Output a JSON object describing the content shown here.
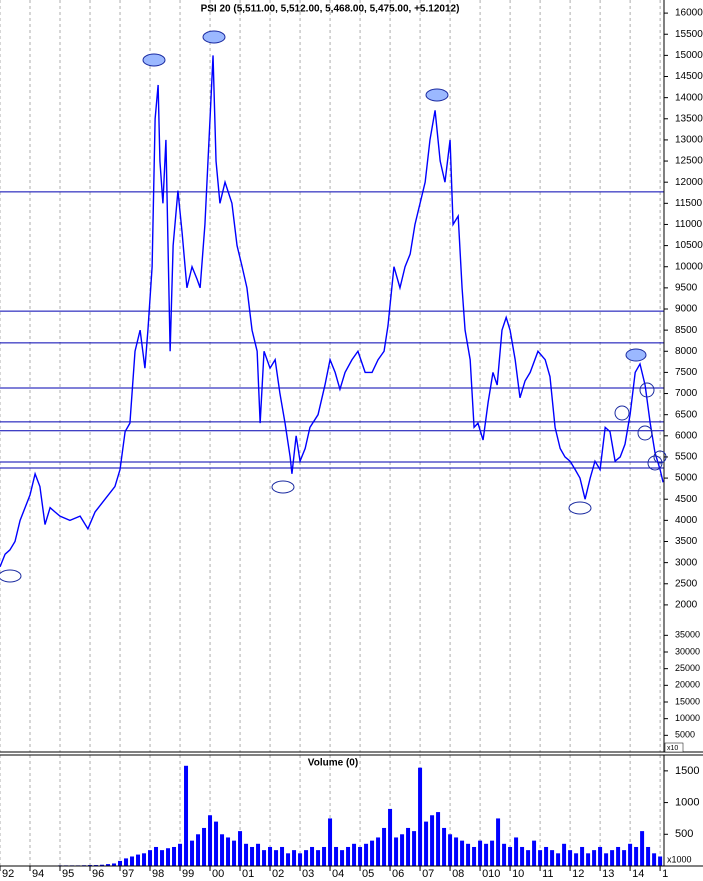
{
  "chart_data": [
    {
      "type": "line",
      "title": "PSI 20 (5,511.00, 5,512.00, 5,468.00, 5,475.00, +5.12012)",
      "color": "#0000ff",
      "x": [
        0,
        0.17,
        0.33,
        0.5,
        0.67,
        1,
        1.17,
        1.33,
        1.5,
        1.67,
        1.83,
        2,
        2.33,
        2.67,
        2.93,
        3.17,
        3.5,
        3.83,
        4,
        4.17,
        4.33,
        4.5,
        4.67,
        4.83,
        4.93,
        5.07,
        5.17,
        5.27,
        5.33,
        5.43,
        5.53,
        5.67,
        5.77,
        5.93,
        6.07,
        6.23,
        6.4,
        6.57,
        6.67,
        6.83,
        7,
        7.1,
        7.2,
        7.33,
        7.5,
        7.73,
        7.9,
        8.07,
        8.23,
        8.4,
        8.57,
        8.67,
        8.8,
        9,
        9.17,
        9.33,
        9.5,
        9.67,
        9.73,
        9.87,
        10,
        10.17,
        10.33,
        10.6,
        10.83,
        11,
        11.17,
        11.33,
        11.5,
        11.73,
        11.93,
        12.17,
        12.4,
        12.6,
        12.8,
        12.93,
        13.13,
        13.33,
        13.5,
        13.67,
        13.83,
        14,
        14.17,
        14.33,
        14.5,
        14.67,
        14.83,
        15,
        15.1,
        15.27,
        15.4,
        15.5,
        15.67,
        15.8,
        15.93,
        16.1,
        16.27,
        16.43,
        16.57,
        16.73,
        16.87,
        17,
        17.17,
        17.33,
        17.5,
        17.67,
        17.93,
        18.17,
        18.33,
        18.5,
        18.67,
        18.83,
        19,
        19.17,
        19.33,
        19.5,
        19.67,
        19.83,
        20,
        20.17,
        20.33,
        20.5,
        20.67,
        20.83,
        21,
        21.17,
        21.33,
        21.5,
        21.67,
        21.83,
        22,
        22.1
      ],
      "values": [
        2900,
        3200,
        3300,
        3500,
        4000,
        4600,
        5100,
        4800,
        3900,
        4300,
        4200,
        4100,
        4000,
        4100,
        3800,
        4200,
        4500,
        4800,
        5200,
        6100,
        6300,
        8000,
        8500,
        7600,
        8500,
        10000,
        13500,
        14300,
        12500,
        11500,
        13000,
        8000,
        10500,
        11800,
        10800,
        9500,
        10000,
        9700,
        9500,
        11000,
        13500,
        15000,
        12500,
        11500,
        12000,
        11500,
        10500,
        10000,
        9500,
        8500,
        8000,
        6300,
        8000,
        7600,
        7800,
        7000,
        6300,
        5500,
        5100,
        6000,
        5400,
        5700,
        6200,
        6500,
        7200,
        7800,
        7500,
        7100,
        7500,
        7800,
        8000,
        7500,
        7500,
        7800,
        8000,
        8600,
        10000,
        9500,
        10000,
        10300,
        11000,
        11500,
        12000,
        13000,
        13700,
        12500,
        12000,
        13000,
        11000,
        11200,
        9500,
        8500,
        7800,
        6200,
        6300,
        5900,
        6800,
        7500,
        7200,
        8500,
        8800,
        8500,
        7800,
        6900,
        7300,
        7500,
        8000,
        7800,
        7400,
        6200,
        5700,
        5500,
        5400,
        5200,
        5000,
        4500,
        5000,
        5400,
        5200,
        6200,
        6100,
        5400,
        5500,
        5800,
        6500,
        7500,
        7700,
        7200,
        6300,
        5600,
        5200,
        4900
      ],
      "reference_lines": [
        11770,
        8950,
        8200,
        7130,
        6330,
        6120,
        5380,
        5240
      ],
      "reference_color": "#0000b0",
      "xlim": [
        0,
        22.13
      ],
      "ylim": [
        -1480,
        16310
      ],
      "yticks": [
        16000,
        15500,
        15000,
        14500,
        14000,
        13500,
        13000,
        12500,
        12000,
        11500,
        11000,
        10500,
        10000,
        9500,
        9000,
        8500,
        8000,
        7500,
        7000,
        6500,
        6000,
        5500,
        5000,
        4500,
        4000,
        3500,
        3000,
        2500,
        2000
      ],
      "y2lim": [
        0,
        225600
      ],
      "y2ticks": [
        35000,
        30000,
        25000,
        20000,
        15000,
        10000,
        5000
      ],
      "y_unit_label": "x10",
      "grid": true
    },
    {
      "type": "bar",
      "title": "Volume (0)",
      "color": "#0000ff",
      "x": [
        0,
        0.2,
        0.4,
        0.6,
        0.8,
        1,
        1.2,
        1.4,
        1.6,
        1.8,
        2,
        2.2,
        2.4,
        2.6,
        2.8,
        3,
        3.2,
        3.4,
        3.6,
        3.8,
        4,
        4.2,
        4.4,
        4.6,
        4.8,
        5,
        5.2,
        5.4,
        5.6,
        5.8,
        6,
        6.2,
        6.4,
        6.6,
        6.8,
        7,
        7.2,
        7.4,
        7.6,
        7.8,
        8,
        8.2,
        8.4,
        8.6,
        8.8,
        9,
        9.2,
        9.4,
        9.6,
        9.8,
        10,
        10.2,
        10.4,
        10.6,
        10.8,
        11,
        11.2,
        11.4,
        11.6,
        11.8,
        12,
        12.2,
        12.4,
        12.6,
        12.8,
        13,
        13.2,
        13.4,
        13.6,
        13.8,
        14,
        14.2,
        14.4,
        14.6,
        14.8,
        15,
        15.2,
        15.4,
        15.6,
        15.8,
        16,
        16.2,
        16.4,
        16.6,
        16.8,
        17,
        17.2,
        17.4,
        17.6,
        17.8,
        18,
        18.2,
        18.4,
        18.6,
        18.8,
        19,
        19.2,
        19.4,
        19.6,
        19.8,
        20,
        20.2,
        20.4,
        20.6,
        20.8,
        21,
        21.2,
        21.4,
        21.6,
        21.8,
        22
      ],
      "values": [
        5,
        5,
        5,
        5,
        5,
        5,
        8,
        8,
        8,
        8,
        10,
        10,
        10,
        10,
        12,
        15,
        15,
        20,
        30,
        40,
        80,
        120,
        150,
        180,
        200,
        250,
        300,
        250,
        280,
        300,
        350,
        1580,
        400,
        500,
        600,
        800,
        700,
        500,
        450,
        400,
        550,
        350,
        300,
        350,
        250,
        300,
        250,
        300,
        200,
        250,
        200,
        250,
        300,
        250,
        300,
        750,
        300,
        250,
        300,
        350,
        300,
        350,
        400,
        450,
        600,
        900,
        450,
        500,
        600,
        550,
        1550,
        700,
        800,
        850,
        600,
        500,
        450,
        400,
        350,
        300,
        400,
        350,
        400,
        750,
        350,
        300,
        450,
        300,
        250,
        400,
        250,
        300,
        250,
        200,
        350,
        250,
        200,
        300,
        200,
        250,
        300,
        200,
        250,
        300,
        250,
        350,
        300,
        550,
        300,
        200,
        150
      ],
      "xlim": [
        0,
        22.13
      ],
      "xticks": [
        {
          "value": 0,
          "label": "92"
        },
        {
          "value": 1,
          "label": "94"
        },
        {
          "value": 2,
          "label": "95"
        },
        {
          "value": 3,
          "label": "96"
        },
        {
          "value": 4,
          "label": "97"
        },
        {
          "value": 5,
          "label": "98"
        },
        {
          "value": 6,
          "label": "99"
        },
        {
          "value": 7,
          "label": "00"
        },
        {
          "value": 8,
          "label": "01"
        },
        {
          "value": 9,
          "label": "02"
        },
        {
          "value": 10,
          "label": "03"
        },
        {
          "value": 11,
          "label": "04"
        },
        {
          "value": 12,
          "label": "05"
        },
        {
          "value": 13,
          "label": "06"
        },
        {
          "value": 14,
          "label": "07"
        },
        {
          "value": 15,
          "label": "08"
        },
        {
          "value": 16,
          "label": "010"
        },
        {
          "value": 17,
          "label": "10"
        },
        {
          "value": 18,
          "label": "11"
        },
        {
          "value": 19,
          "label": "12"
        },
        {
          "value": 20,
          "label": "13"
        },
        {
          "value": 21,
          "label": "14"
        },
        {
          "value": 22,
          "label": "1"
        }
      ],
      "ylim": [
        0,
        1750
      ],
      "yticks": [
        500,
        1000,
        1500
      ],
      "y_unit_label": "x1000"
    }
  ]
}
